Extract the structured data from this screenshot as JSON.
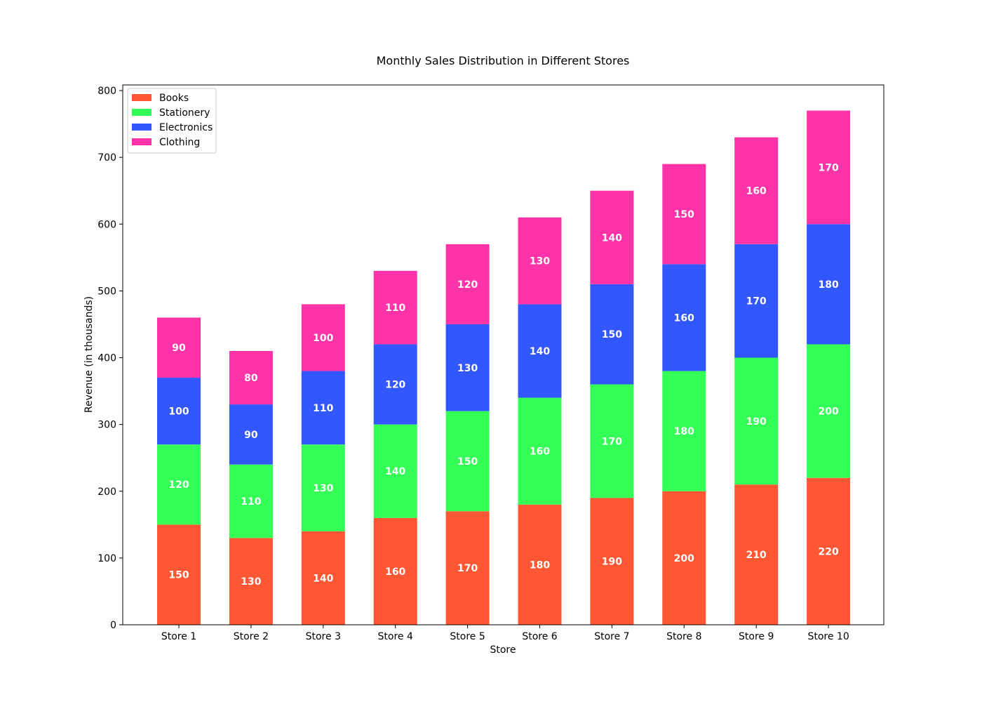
{
  "chart_data": {
    "type": "bar",
    "stacked": true,
    "title": "Monthly Sales Distribution in Different Stores",
    "xlabel": "Store",
    "ylabel": "Revenue (in thousands)",
    "ylim": [
      0,
      800
    ],
    "yticks": [
      0,
      100,
      200,
      300,
      400,
      500,
      600,
      700,
      800
    ],
    "categories": [
      "Store 1",
      "Store 2",
      "Store 3",
      "Store 4",
      "Store 5",
      "Store 6",
      "Store 7",
      "Store 8",
      "Store 9",
      "Store 10"
    ],
    "series": [
      {
        "name": "Books",
        "color": "#ff5733",
        "values": [
          150,
          130,
          140,
          160,
          170,
          180,
          190,
          200,
          210,
          220
        ]
      },
      {
        "name": "Stationery",
        "color": "#33ff57",
        "values": [
          120,
          110,
          130,
          140,
          150,
          160,
          170,
          180,
          190,
          200
        ]
      },
      {
        "name": "Electronics",
        "color": "#3357ff",
        "values": [
          100,
          90,
          110,
          120,
          130,
          140,
          150,
          160,
          170,
          180
        ]
      },
      {
        "name": "Clothing",
        "color": "#ff33a8",
        "values": [
          90,
          80,
          100,
          110,
          120,
          130,
          140,
          150,
          160,
          170
        ]
      }
    ],
    "legend": "top-left",
    "grid": false
  }
}
